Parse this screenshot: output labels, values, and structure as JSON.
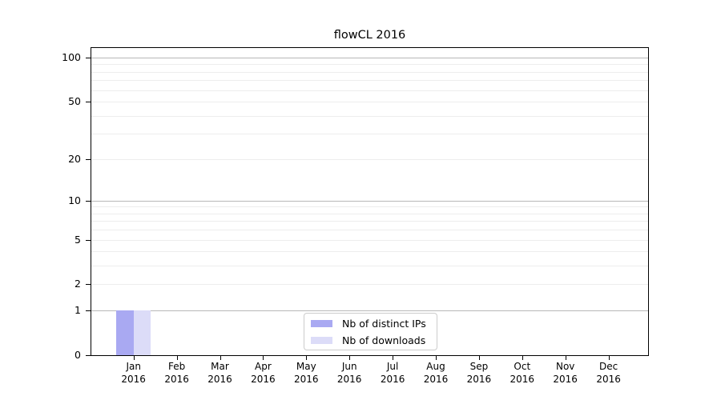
{
  "chart_data": {
    "type": "bar",
    "title": "flowCL 2016",
    "categories": [
      "Jan 2016",
      "Feb 2016",
      "Mar 2016",
      "Apr 2016",
      "May 2016",
      "Jun 2016",
      "Jul 2016",
      "Aug 2016",
      "Sep 2016",
      "Oct 2016",
      "Nov 2016",
      "Dec 2016"
    ],
    "series": [
      {
        "name": "Nb of distinct IPs",
        "color": "#a9a9f2",
        "values": [
          1,
          0,
          0,
          0,
          0,
          0,
          0,
          0,
          0,
          0,
          0,
          0
        ]
      },
      {
        "name": "Nb of downloads",
        "color": "#dcdcf8",
        "values": [
          1,
          0,
          0,
          0,
          0,
          0,
          0,
          0,
          0,
          0,
          0,
          0
        ]
      }
    ],
    "x_axis": {
      "months": [
        "Jan",
        "Feb",
        "Mar",
        "Apr",
        "May",
        "Jun",
        "Jul",
        "Aug",
        "Sep",
        "Oct",
        "Nov",
        "Dec"
      ],
      "year_label": "2016"
    },
    "y_axis": {
      "scale": "log1p",
      "ylim": [
        0,
        116
      ],
      "tick_values": [
        0,
        1,
        2,
        5,
        10,
        20,
        50,
        100
      ],
      "tick_labels": [
        "0",
        "1",
        "2",
        "5",
        "10",
        "20",
        "50",
        "100"
      ],
      "major_gridlines": [
        1,
        10,
        100
      ],
      "minor_gridlines": [
        2,
        3,
        4,
        5,
        6,
        7,
        8,
        9,
        20,
        30,
        40,
        50,
        60,
        70,
        80,
        90
      ]
    },
    "legend": {
      "position": "lower center inside",
      "entries": [
        "Nb of distinct IPs",
        "Nb of downloads"
      ]
    },
    "grid": true
  },
  "colors": {
    "background": "#ffffff",
    "axis_frame": "#000000",
    "major_gridline": "#b8b8b8",
    "minor_gridline": "#ededed",
    "bar_distinct_ips": "#a9a9f2",
    "bar_downloads": "#dcdcf8",
    "legend_border": "#cccccc",
    "text": "#000000"
  }
}
